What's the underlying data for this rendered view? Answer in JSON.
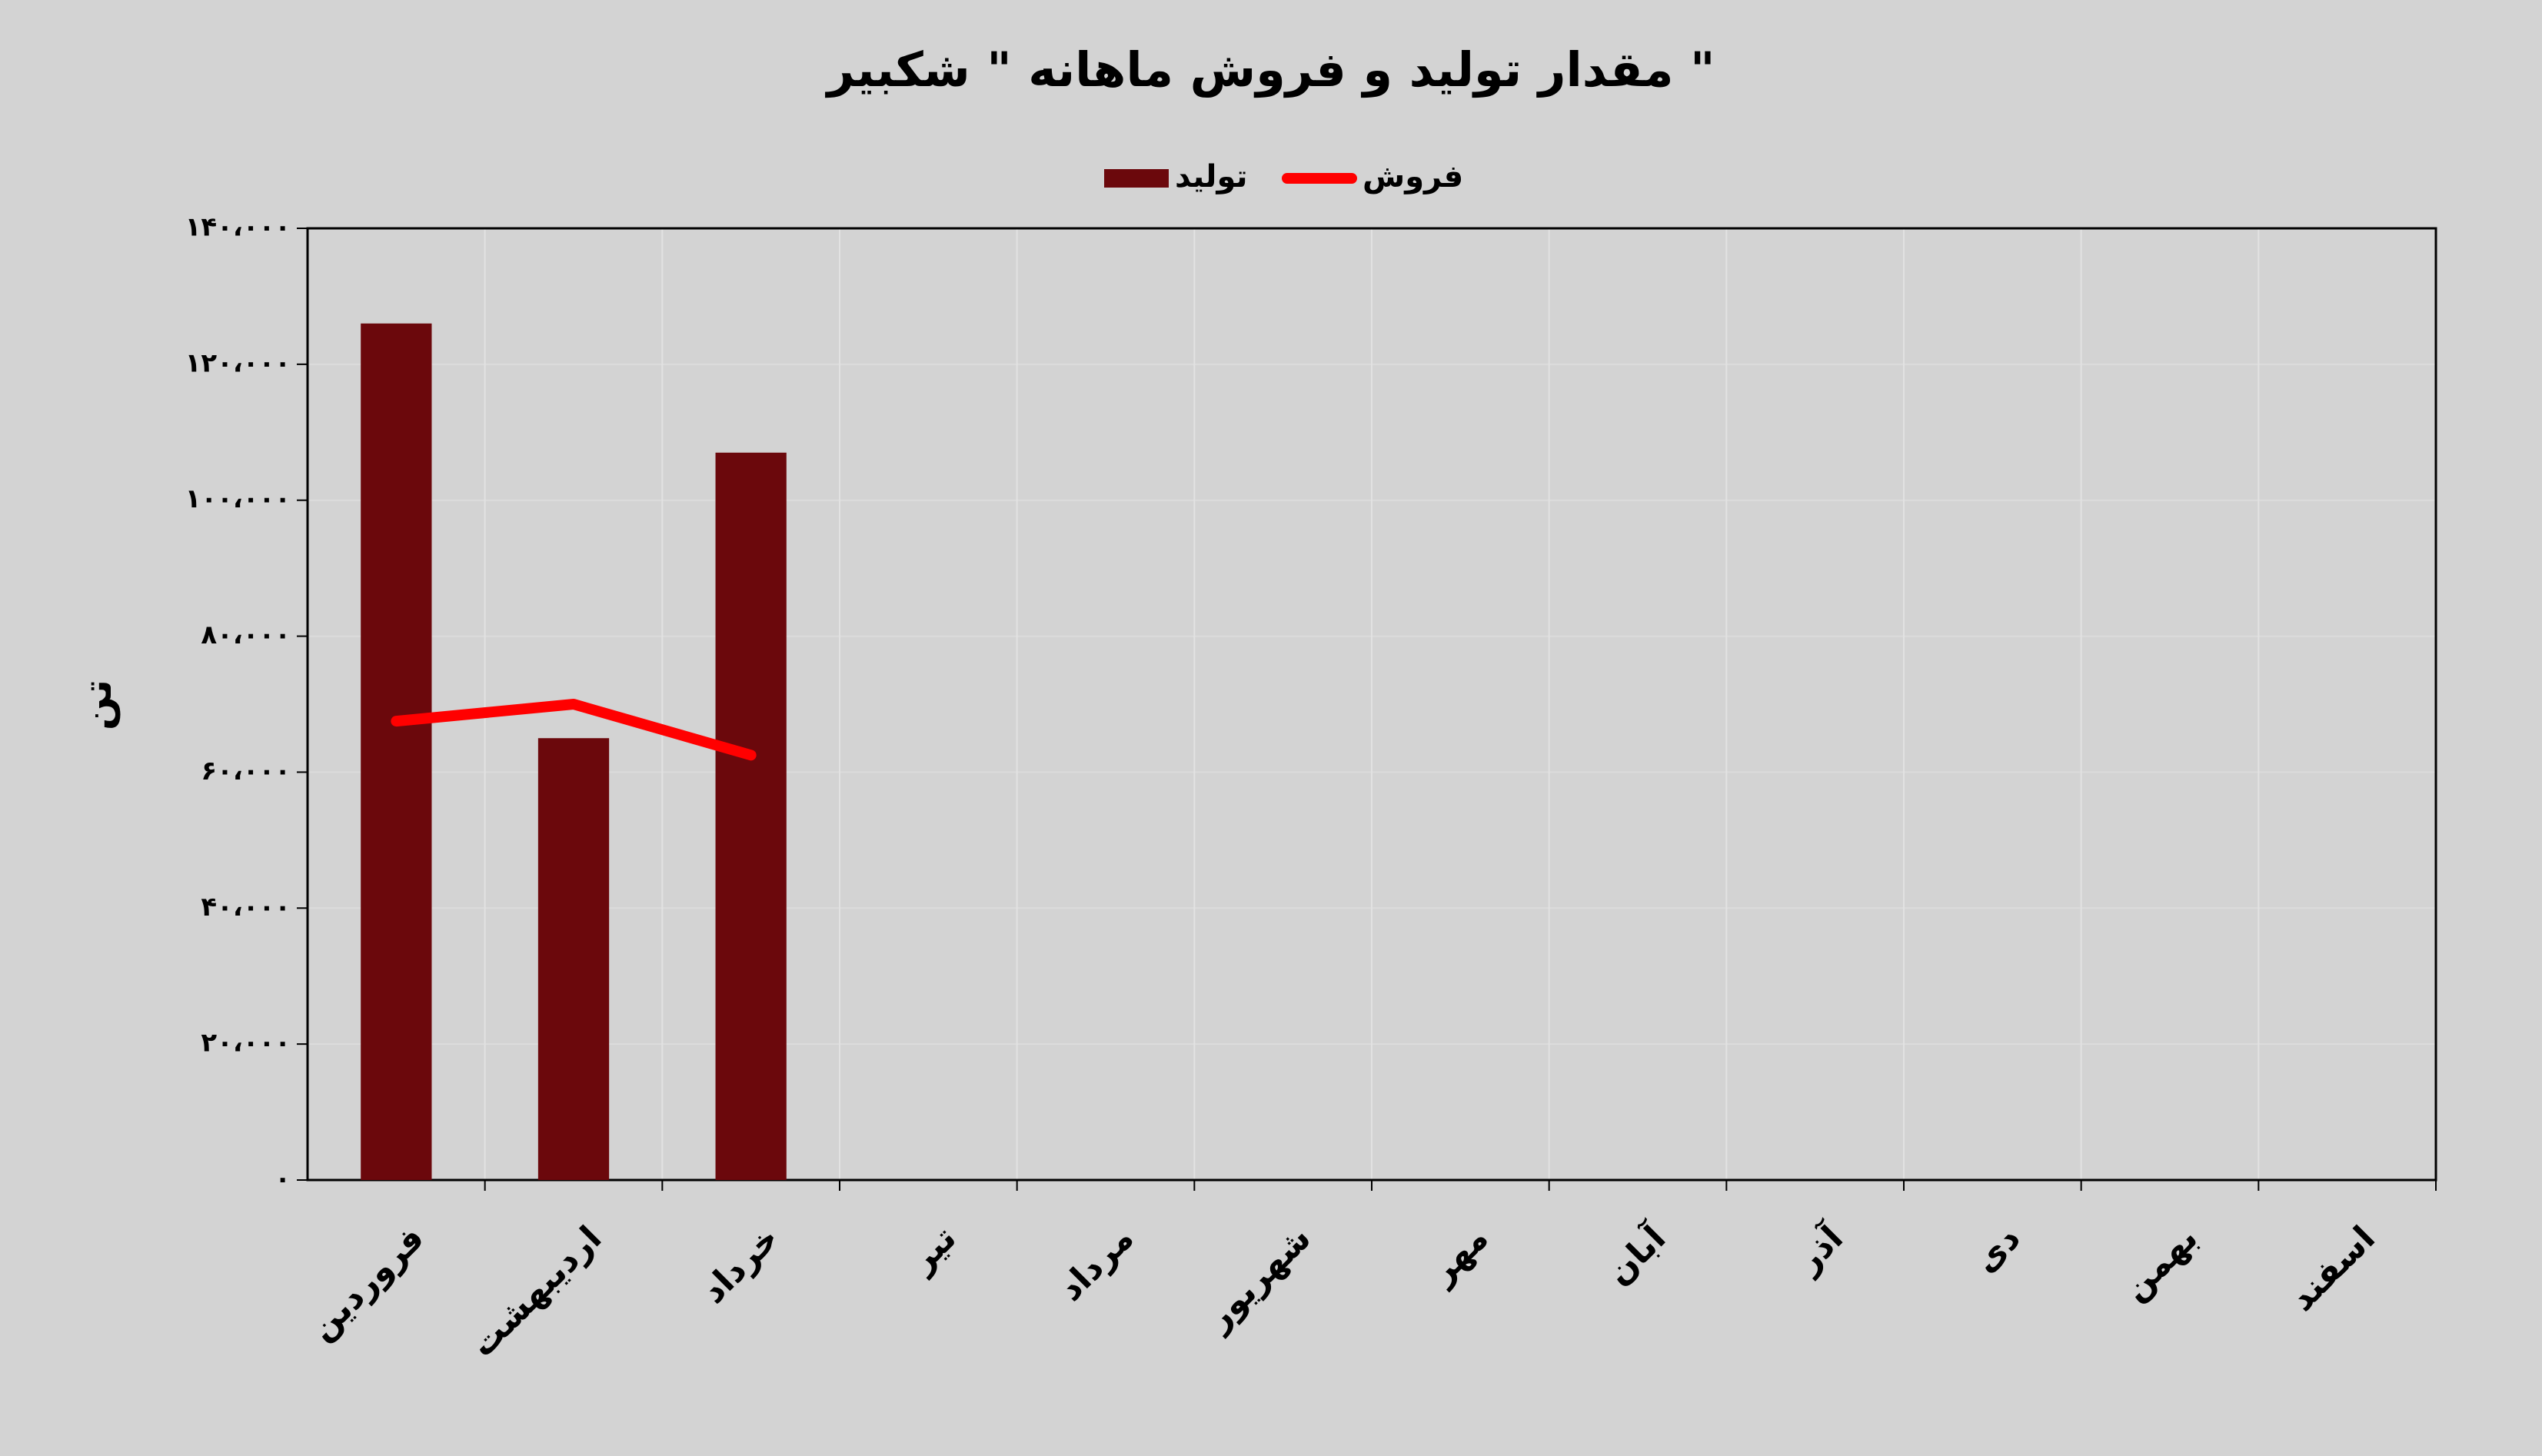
{
  "chart_data": {
    "type": "bar",
    "title": "مقدار تولید و فروش ماهانه \" شکبیر \"",
    "y_label": "تن",
    "categories": [
      "فروردین",
      "اردیبهشت",
      "خرداد",
      "تیر",
      "مرداد",
      "شهریور",
      "مهر",
      "آبان",
      "آذر",
      "دی",
      "بهمن",
      "اسفند"
    ],
    "series": [
      {
        "name": "تولید",
        "type": "bar",
        "color": "#6b080c",
        "values": [
          126000,
          65000,
          107000,
          null,
          null,
          null,
          null,
          null,
          null,
          null,
          null,
          null
        ]
      },
      {
        "name": "فروش",
        "type": "line",
        "color": "#ff0000",
        "values": [
          67500,
          70000,
          62500,
          null,
          null,
          null,
          null,
          null,
          null,
          null,
          null,
          null
        ]
      }
    ],
    "ylim": [
      0,
      140000
    ],
    "yticks": [
      {
        "value": 0,
        "label": "۰"
      },
      {
        "value": 20000,
        "label": "۲۰،۰۰۰"
      },
      {
        "value": 40000,
        "label": "۴۰،۰۰۰"
      },
      {
        "value": 60000,
        "label": "۶۰،۰۰۰"
      },
      {
        "value": 80000,
        "label": "۸۰،۰۰۰"
      },
      {
        "value": 100000,
        "label": "۱۰۰،۰۰۰"
      },
      {
        "value": 120000,
        "label": "۱۲۰،۰۰۰"
      },
      {
        "value": 140000,
        "label": "۱۴۰،۰۰۰"
      }
    ],
    "grid": true
  }
}
